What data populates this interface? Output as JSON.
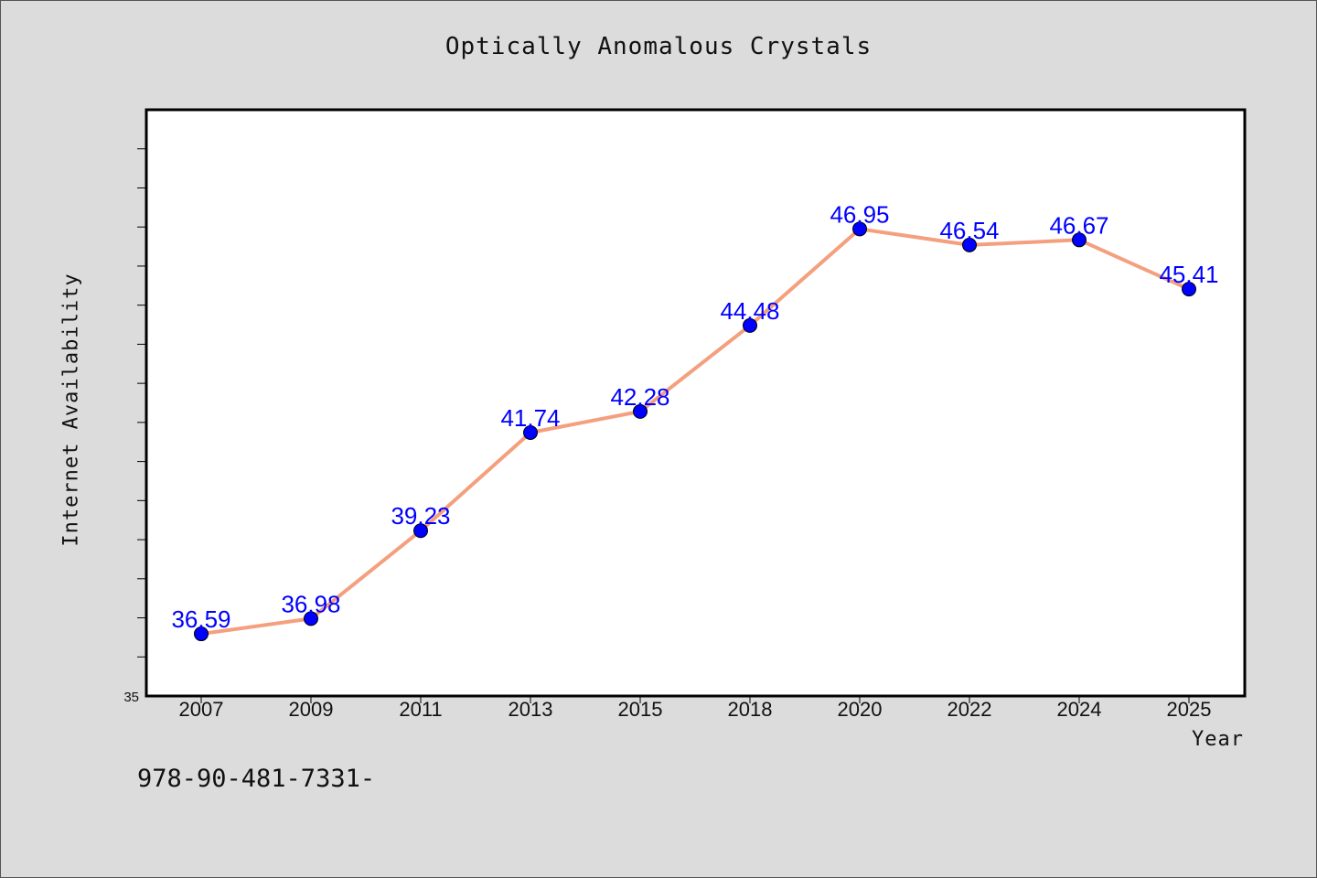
{
  "chart_data": {
    "type": "line",
    "title": "Optically Anomalous Crystals",
    "xlabel": "Year",
    "ylabel": "Internet Availability",
    "categories": [
      "2007",
      "2009",
      "2011",
      "2013",
      "2015",
      "2018",
      "2020",
      "2022",
      "2024",
      "2025"
    ],
    "series": [
      {
        "values": [
          36.59,
          36.98,
          39.23,
          41.74,
          42.28,
          44.48,
          46.95,
          46.54,
          46.67,
          45.41
        ],
        "line_color": "#f4a07f",
        "marker_color": "#0000ff"
      }
    ],
    "y_tick_label": "35",
    "ylim": [
      35,
      50
    ],
    "grid": false,
    "legend": "none",
    "data_labels": true,
    "data_label_color": "#0000ff"
  },
  "footnote": "978-90-481-7331-"
}
